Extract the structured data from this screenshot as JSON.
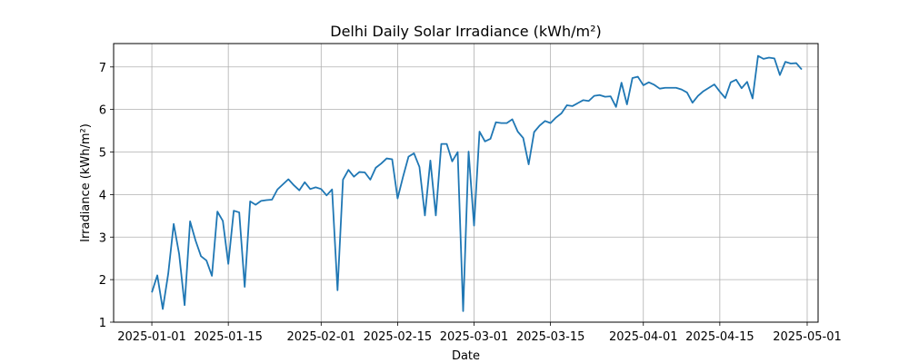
{
  "chart_data": {
    "type": "line",
    "title": "Delhi Daily Solar Irradiance (kWh/m²)",
    "xlabel": "Date",
    "ylabel": "Irradiance (kWh/m²)",
    "xlim": [
      "2024-12-25",
      "2025-05-03"
    ],
    "ylim": [
      1,
      7.55
    ],
    "x_ticks": [
      "2025-01-01",
      "2025-01-15",
      "2025-02-01",
      "2025-02-15",
      "2025-03-01",
      "2025-03-15",
      "2025-04-01",
      "2025-04-15",
      "2025-05-01"
    ],
    "y_ticks": [
      1,
      2,
      3,
      4,
      5,
      6,
      7
    ],
    "grid": true,
    "legend": "none",
    "colors": {
      "line": "#1f77b4",
      "grid": "#b0b0b0"
    },
    "series": [
      {
        "x_start": "2025-01-01",
        "x_step_days": 1,
        "values": [
          1.7,
          2.1,
          1.31,
          2.14,
          3.31,
          2.6,
          1.4,
          3.37,
          2.92,
          2.55,
          2.45,
          2.09,
          3.6,
          3.38,
          2.37,
          3.62,
          3.58,
          1.83,
          3.84,
          3.76,
          3.85,
          3.87,
          3.88,
          4.12,
          4.24,
          4.36,
          4.22,
          4.1,
          4.29,
          4.13,
          4.17,
          4.13,
          3.98,
          4.12,
          1.75,
          4.35,
          4.58,
          4.42,
          4.53,
          4.52,
          4.35,
          4.63,
          4.73,
          4.85,
          4.83,
          3.91,
          4.42,
          4.89,
          4.97,
          4.65,
          3.51,
          4.8,
          3.51,
          5.19,
          5.19,
          4.78,
          5.0,
          1.26,
          5.01,
          3.27,
          5.48,
          5.25,
          5.31,
          5.7,
          5.68,
          5.68,
          5.77,
          5.48,
          5.33,
          4.71,
          5.47,
          5.62,
          5.73,
          5.68,
          5.81,
          5.91,
          6.1,
          6.08,
          6.15,
          6.22,
          6.2,
          6.32,
          6.34,
          6.3,
          6.31,
          6.06,
          6.63,
          6.12,
          6.74,
          6.77,
          6.57,
          6.64,
          6.58,
          6.49,
          6.51,
          6.51,
          6.51,
          6.47,
          6.4,
          6.16,
          6.32,
          6.43,
          6.51,
          6.59,
          6.42,
          6.27,
          6.64,
          6.7,
          6.5,
          6.65,
          6.26,
          7.26,
          7.19,
          7.22,
          7.2,
          6.81,
          7.12,
          7.08,
          7.09,
          6.94
        ]
      }
    ]
  }
}
